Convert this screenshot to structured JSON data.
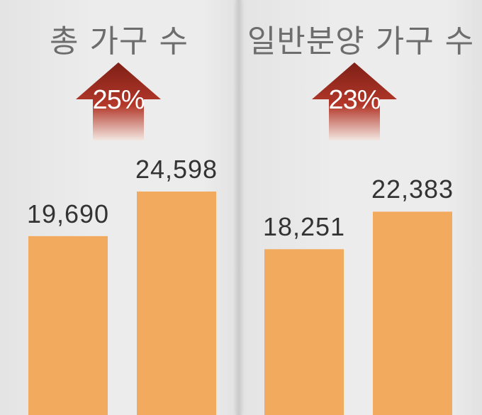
{
  "colors": {
    "bar": "#f2aa5e",
    "arrow_top": "#7e1f16",
    "arrow_bottom": "#f3e8e2",
    "title": "#6d6d6d",
    "value_text": "#333333"
  },
  "chart_data": [
    {
      "type": "bar",
      "title": "총 가구 수",
      "change_label": "25%",
      "change_icon": "up-arrow-icon",
      "categories": [
        "",
        ""
      ],
      "values": [
        19690,
        24598
      ],
      "value_labels": [
        "19,690",
        "24,598"
      ],
      "grid": false
    },
    {
      "type": "bar",
      "title": "일반분양 가구 수",
      "change_label": "23%",
      "change_icon": "up-arrow-icon",
      "categories": [
        "",
        ""
      ],
      "values": [
        18251,
        22383
      ],
      "value_labels": [
        "18,251",
        "22,383"
      ],
      "grid": false
    }
  ]
}
